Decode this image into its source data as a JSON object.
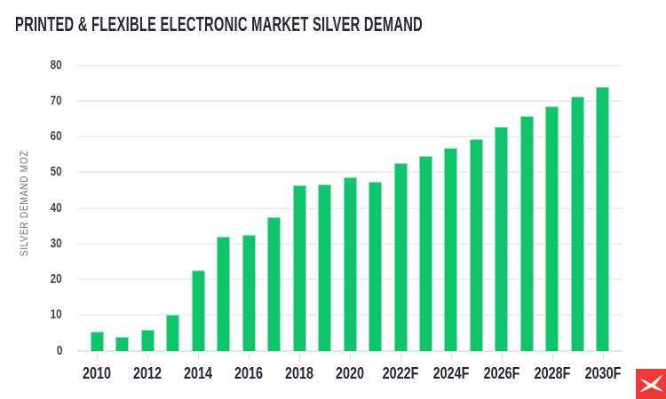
{
  "header": {
    "title": "PRINTED & FLEXIBLE ELECTRONIC MARKET SILVER DEMAND"
  },
  "chart_data": {
    "type": "bar",
    "title": "PRINTED & FLEXIBLE ELECTRONIC MARKET SILVER DEMAND",
    "xlabel": "",
    "ylabel": "SILVER DEMAND MOZ",
    "ylim": [
      0,
      80
    ],
    "yticks": [
      0,
      10,
      20,
      30,
      40,
      50,
      60,
      70,
      80
    ],
    "grid": true,
    "legend": "none",
    "categories": [
      "2010",
      "2011",
      "2012",
      "2013",
      "2014",
      "2015",
      "2016",
      "2017",
      "2018",
      "2019",
      "2020",
      "2021",
      "2022F",
      "2023F",
      "2024F",
      "2025F",
      "2026F",
      "2027F",
      "2028F",
      "2029F",
      "2030F"
    ],
    "values": [
      5.6,
      4.0,
      6.1,
      10.3,
      22.7,
      32.2,
      32.7,
      37.6,
      46.6,
      46.8,
      48.9,
      47.7,
      52.7,
      54.8,
      57.1,
      59.6,
      63.1,
      65.9,
      68.6,
      71.4,
      74.1
    ],
    "x_tick_labels_shown": [
      "2010",
      "2012",
      "2014",
      "2016",
      "2018",
      "2020",
      "2022F",
      "2024F",
      "2026F",
      "2028F",
      "2030F"
    ],
    "bar_color": "#0fc46b",
    "bar_edge_color": "#96e6b9",
    "gridline_color": "#efefef",
    "title_color": "#23272f",
    "axis_label_color": "#6d727c",
    "tick_label_color": "#3e4552"
  },
  "branding": {
    "logo_icon": "x-logo-icon",
    "logo_background": "#ef3b33",
    "logo_glyph_color": "#ffffff"
  }
}
